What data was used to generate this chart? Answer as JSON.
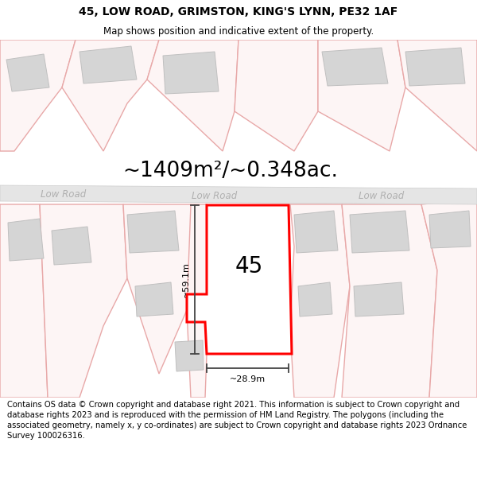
{
  "title": "45, LOW ROAD, GRIMSTON, KING'S LYNN, PE32 1AF",
  "subtitle": "Map shows position and indicative extent of the property.",
  "area_text": "~1409m²/~0.348ac.",
  "number_label": "45",
  "width_label": "~28.9m",
  "height_label": "~59.1m",
  "road_label": "Low Road",
  "footer": "Contains OS data © Crown copyright and database right 2021. This information is subject to Crown copyright and database rights 2023 and is reproduced with the permission of HM Land Registry. The polygons (including the associated geometry, namely x, y co-ordinates) are subject to Crown copyright and database rights 2023 Ordnance Survey 100026316.",
  "title_fontsize": 10,
  "subtitle_fontsize": 8.5,
  "area_fontsize": 19,
  "road_fontsize": 8.5,
  "number_fontsize": 20,
  "dim_fontsize": 8,
  "footer_fontsize": 7.2,
  "parcel_line_color": "#e8a8a8",
  "parcel_fill": "#fdf5f5",
  "road_fill": "#e5e5e5",
  "road_edge": "#cccccc",
  "road_text_color": "#b0b0b0",
  "building_fill": "#d5d5d5",
  "building_edge": "#c0c0c0",
  "highlight_edge": "#ff0000",
  "highlight_fill": "#ffffff",
  "dim_color": "#444444",
  "map_bg": "#fefefe"
}
